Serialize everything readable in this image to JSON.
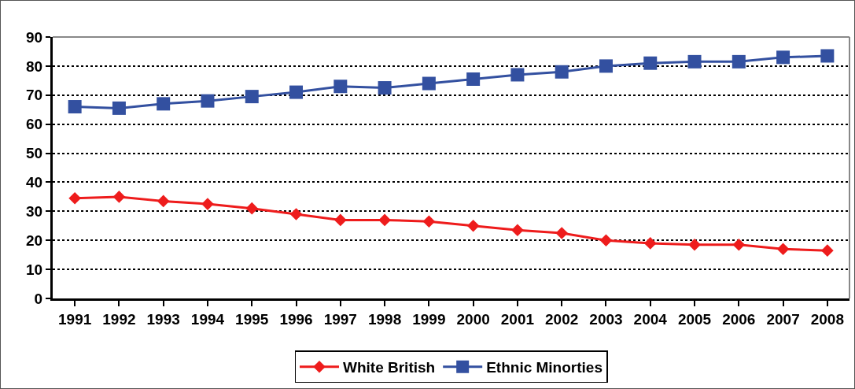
{
  "chart_data": {
    "type": "line",
    "categories": [
      "1991",
      "1992",
      "1993",
      "1994",
      "1995",
      "1996",
      "1997",
      "1998",
      "1999",
      "2000",
      "2001",
      "2002",
      "2003",
      "2004",
      "2005",
      "2006",
      "2007",
      "2008"
    ],
    "series": [
      {
        "name": "White British",
        "color": "#ee1c1c",
        "marker": "diamond",
        "values": [
          34.5,
          35,
          33.5,
          32.5,
          31,
          29,
          27,
          27,
          26.5,
          25,
          23.5,
          22.5,
          20,
          19,
          18.5,
          18.5,
          17,
          16.5
        ]
      },
      {
        "name": "Ethnic Minorties",
        "color": "#3350a0",
        "marker": "square",
        "values": [
          66,
          65.5,
          67,
          68,
          69.5,
          71,
          73,
          72.5,
          74,
          75.5,
          77,
          78,
          80,
          81,
          81.5,
          81.5,
          83,
          83.5
        ]
      }
    ],
    "ylim": [
      0,
      90
    ],
    "yticks": [
      0,
      10,
      20,
      30,
      40,
      50,
      60,
      70,
      80,
      90
    ],
    "grid": "y",
    "legend": "bottom",
    "line_style": "solid"
  }
}
